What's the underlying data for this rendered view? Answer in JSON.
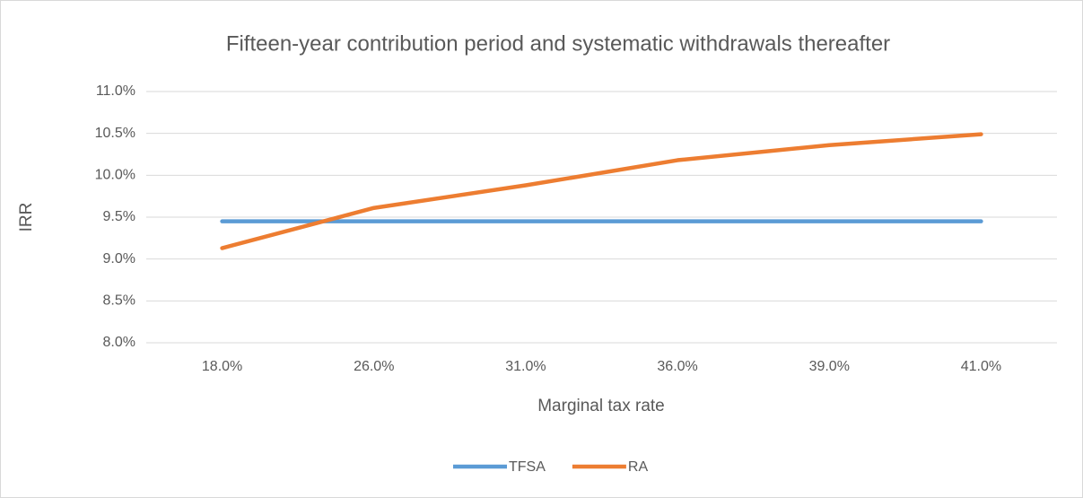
{
  "chart_data": {
    "type": "line",
    "title": "Fifteen-year contribution period and systematic withdrawals thereafter",
    "x_label": "Marginal tax rate",
    "y_label": "IRR",
    "categories": [
      "18.0%",
      "26.0%",
      "31.0%",
      "36.0%",
      "39.0%",
      "41.0%"
    ],
    "series": [
      {
        "name": "TFSA",
        "color": "#5b9bd5",
        "values": [
          9.45,
          9.45,
          9.45,
          9.45,
          9.45,
          9.45
        ]
      },
      {
        "name": "RA",
        "color": "#ed7d31",
        "values": [
          9.13,
          9.61,
          9.88,
          10.18,
          10.36,
          10.49
        ]
      }
    ],
    "ylim": [
      8,
      11
    ],
    "yticks": [
      {
        "value": 8,
        "label": "8.0%"
      },
      {
        "value": 8.5,
        "label": "8.5%"
      },
      {
        "value": 9,
        "label": "9.0%"
      },
      {
        "value": 9.5,
        "label": "9.5%"
      },
      {
        "value": 10,
        "label": "10.0%"
      },
      {
        "value": 10.5,
        "label": "10.5%"
      },
      {
        "value": 11,
        "label": "11.0%"
      }
    ],
    "grid": true,
    "legend": "bottom"
  }
}
